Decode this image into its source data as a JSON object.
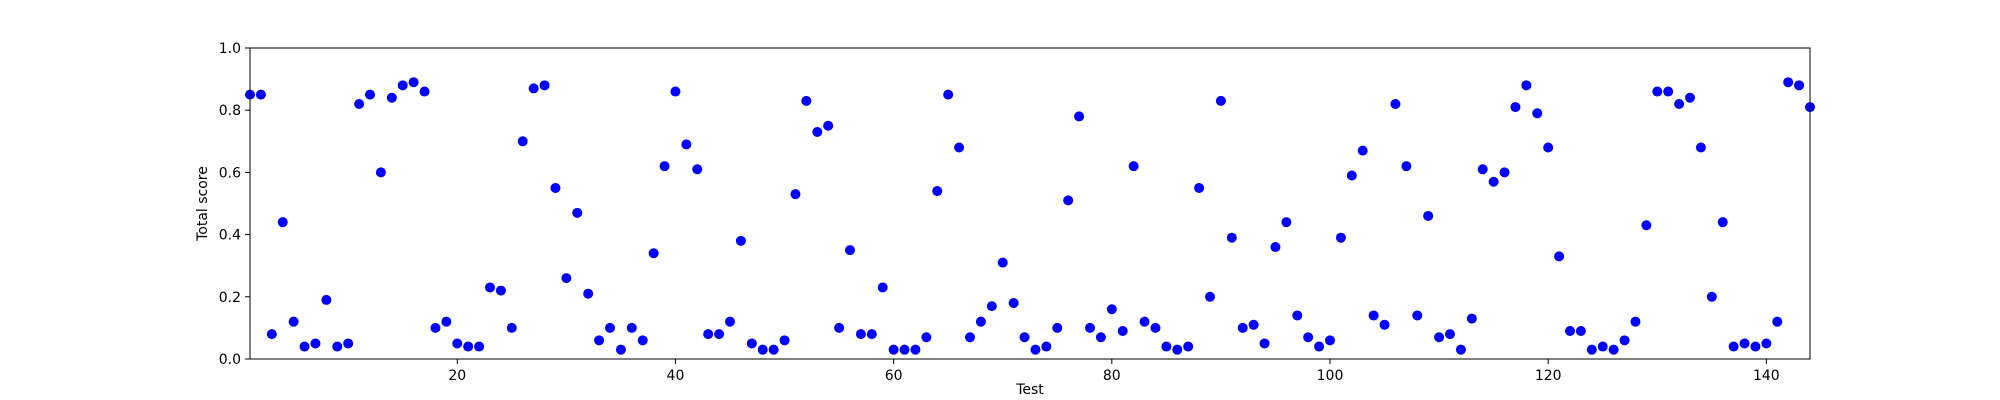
{
  "chart_data": {
    "type": "scatter",
    "title": "",
    "xlabel": "Test",
    "ylabel": "Total score",
    "xlim": [
      1,
      144
    ],
    "ylim": [
      0,
      1
    ],
    "x_ticks": [
      20,
      40,
      60,
      80,
      100,
      120,
      140
    ],
    "y_ticks": [
      "0.0",
      "0.2",
      "0.4",
      "0.6",
      "0.8",
      "1.0"
    ],
    "grid": false,
    "color": "#0000ff",
    "x": [
      1,
      2,
      3,
      4,
      5,
      6,
      7,
      8,
      9,
      10,
      11,
      12,
      13,
      14,
      15,
      16,
      17,
      18,
      19,
      20,
      21,
      22,
      23,
      24,
      25,
      26,
      27,
      28,
      29,
      30,
      31,
      32,
      33,
      34,
      35,
      36,
      37,
      38,
      39,
      40,
      41,
      42,
      43,
      44,
      45,
      46,
      47,
      48,
      49,
      50,
      51,
      52,
      53,
      54,
      55,
      56,
      57,
      58,
      59,
      60,
      61,
      62,
      63,
      64,
      65,
      66,
      67,
      68,
      69,
      70,
      71,
      72,
      73,
      74,
      75,
      76,
      77,
      78,
      79,
      80,
      81,
      82,
      83,
      84,
      85,
      86,
      87,
      88,
      89,
      90,
      91,
      92,
      93,
      94,
      95,
      96,
      97,
      98,
      99,
      100,
      101,
      102,
      103,
      104,
      105,
      106,
      107,
      108,
      109,
      110,
      111,
      112,
      113,
      114,
      115,
      116,
      117,
      118,
      119,
      120,
      121,
      122,
      123,
      124,
      125,
      126,
      127,
      128,
      129,
      130,
      131,
      132,
      133,
      134,
      135,
      136,
      137,
      138,
      139,
      140,
      141,
      142,
      143,
      144
    ],
    "y": [
      0.85,
      0.85,
      0.08,
      0.44,
      0.12,
      0.04,
      0.05,
      0.19,
      0.04,
      0.05,
      0.82,
      0.85,
      0.6,
      0.84,
      0.88,
      0.89,
      0.86,
      0.1,
      0.12,
      0.05,
      0.04,
      0.04,
      0.23,
      0.22,
      0.1,
      0.7,
      0.87,
      0.88,
      0.55,
      0.26,
      0.47,
      0.21,
      0.06,
      0.1,
      0.03,
      0.1,
      0.06,
      0.34,
      0.62,
      0.86,
      0.69,
      0.61,
      0.08,
      0.08,
      0.12,
      0.38,
      0.05,
      0.03,
      0.03,
      0.06,
      0.53,
      0.83,
      0.73,
      0.75,
      0.1,
      0.35,
      0.08,
      0.08,
      0.23,
      0.03,
      0.03,
      0.03,
      0.07,
      0.54,
      0.85,
      0.68,
      0.07,
      0.12,
      0.17,
      0.31,
      0.18,
      0.07,
      0.03,
      0.04,
      0.1,
      0.51,
      0.78,
      0.1,
      0.07,
      0.16,
      0.09,
      0.62,
      0.12,
      0.1,
      0.04,
      0.03,
      0.04,
      0.55,
      0.2,
      0.83,
      0.39,
      0.1,
      0.11,
      0.05,
      0.36,
      0.44,
      0.14,
      0.07,
      0.04,
      0.06,
      0.39,
      0.59,
      0.67,
      0.14,
      0.11,
      0.82,
      0.62,
      0.14,
      0.46,
      0.07,
      0.08,
      0.03,
      0.13,
      0.61,
      0.57,
      0.6,
      0.81,
      0.88,
      0.79,
      0.68,
      0.33,
      0.09,
      0.09,
      0.03,
      0.04,
      0.03,
      0.06,
      0.12,
      0.43,
      0.86,
      0.86,
      0.82,
      0.84,
      0.68,
      0.2,
      0.44,
      0.04,
      0.05,
      0.04,
      0.05,
      0.12,
      0.89,
      0.88,
      0.81
    ]
  }
}
